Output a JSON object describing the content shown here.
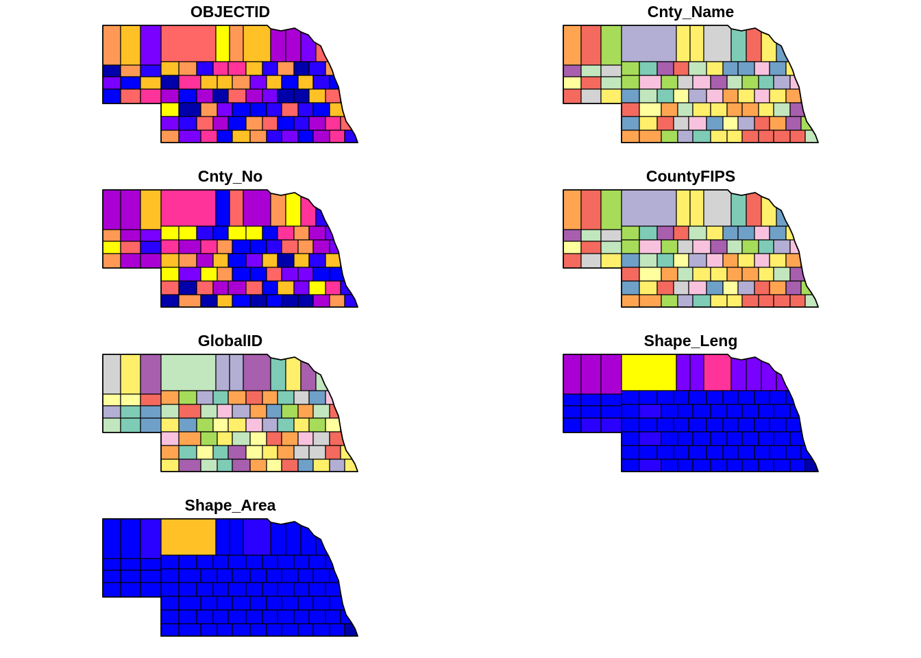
{
  "panels": [
    {
      "title": "OBJECTID",
      "mode": "random-continuous",
      "seed": 11
    },
    {
      "title": "Cnty_Name",
      "mode": "categorical",
      "seed": 23
    },
    {
      "title": "Cnty_No",
      "mode": "random-continuous",
      "seed": 37
    },
    {
      "title": "CountyFIPS",
      "mode": "categorical",
      "seed": 23
    },
    {
      "title": "GlobalID",
      "mode": "categorical",
      "seed": 51
    },
    {
      "title": "Shape_Leng",
      "mode": "perimeter",
      "seed": 0
    },
    {
      "title": "Shape_Area",
      "mode": "area",
      "seed": 0
    }
  ],
  "colors": {
    "continuous": [
      "#0000AA",
      "#0000FF",
      "#2A00FF",
      "#7A00FF",
      "#AA00D4",
      "#FF3399",
      "#FF6666",
      "#FF9955",
      "#FFC125",
      "#FFFF00"
    ],
    "categorical": [
      "#C2E6BE",
      "#A6DC5A",
      "#D3D3D3",
      "#F8C2DE",
      "#FFEF6B",
      "#6FA0C8",
      "#F46A5E",
      "#A75FAE",
      "#7ECBB6",
      "#FFA552",
      "#FFFF9E",
      "#B3AED4"
    ]
  }
}
